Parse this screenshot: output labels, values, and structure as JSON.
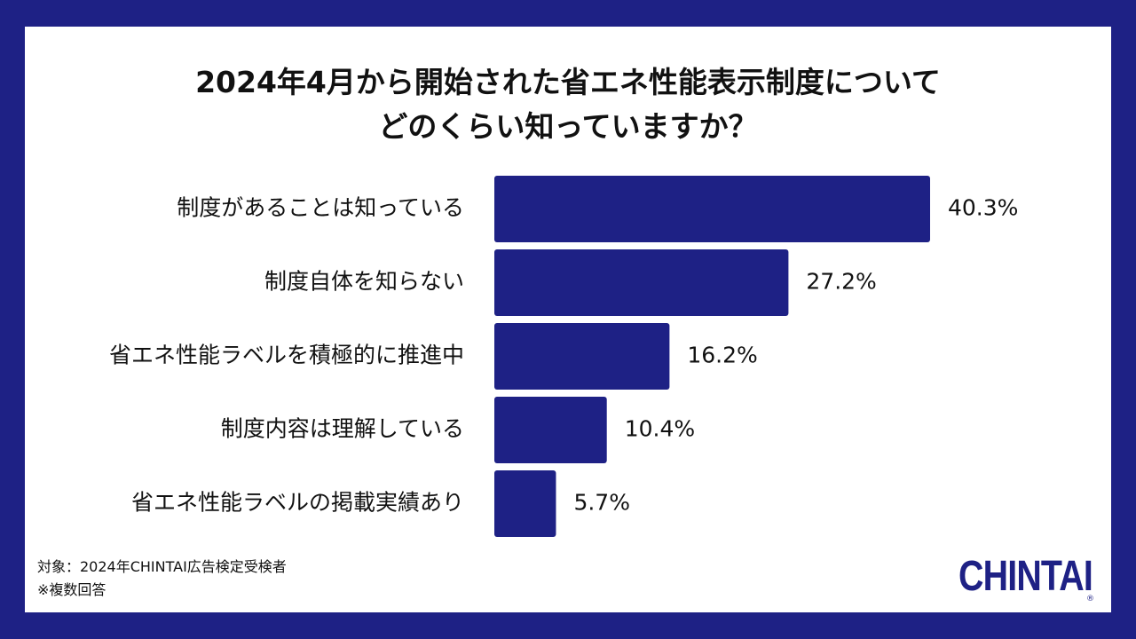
{
  "title": {
    "line1": "2024年4月から開始された省エネ性能表示制度について",
    "line2": "どのくらい知っていますか？"
  },
  "chart_data": {
    "type": "bar",
    "orientation": "horizontal",
    "categories": [
      "制度があることは知っている",
      "制度自体を知らない",
      "省エネ性能ラベルを積極的に推進中",
      "制度内容は理解している",
      "省エネ性能ラベルの掲載実績あり"
    ],
    "values": [
      40.3,
      27.2,
      16.2,
      10.4,
      5.7
    ],
    "value_labels": [
      "40.3%",
      "27.2%",
      "16.2%",
      "10.4%",
      "5.7%"
    ],
    "unit": "%",
    "bar_color": "#1e2185",
    "grid": false,
    "legend": "none"
  },
  "footnote": {
    "line1": "対象：2024年CHINTAI広告検定受検者",
    "line2": "※複数回答"
  },
  "logo": {
    "text": "CHINTAI",
    "mark": "®"
  },
  "colors": {
    "frame": "#1e2185",
    "bar": "#1e2185",
    "text": "#111111"
  }
}
